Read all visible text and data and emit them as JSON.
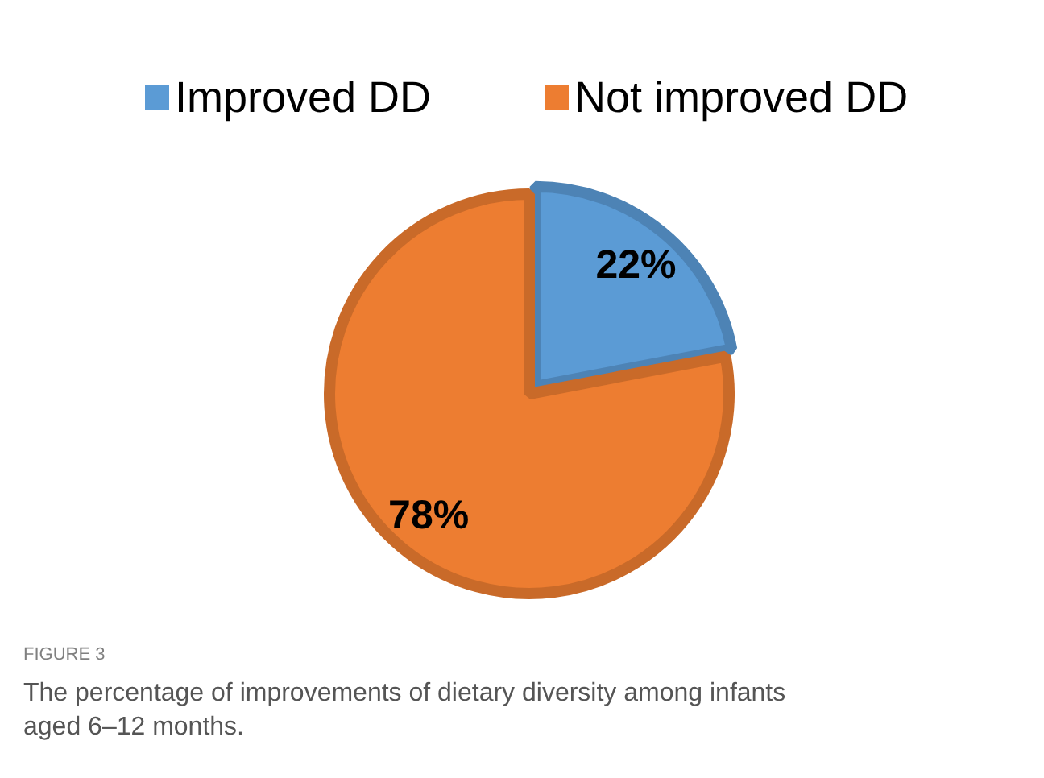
{
  "chart_data": {
    "type": "pie",
    "categories": [
      "Improved DD",
      "Not improved DD"
    ],
    "values": [
      22,
      78
    ],
    "colors": [
      "#5b9bd5",
      "#ed7d31"
    ],
    "value_labels": [
      "22%",
      "78%"
    ],
    "legend": "top",
    "annotations": [
      "FIGURE 3",
      "The percentage of improvements of dietary diversity among infants aged 6–12 months."
    ]
  }
}
